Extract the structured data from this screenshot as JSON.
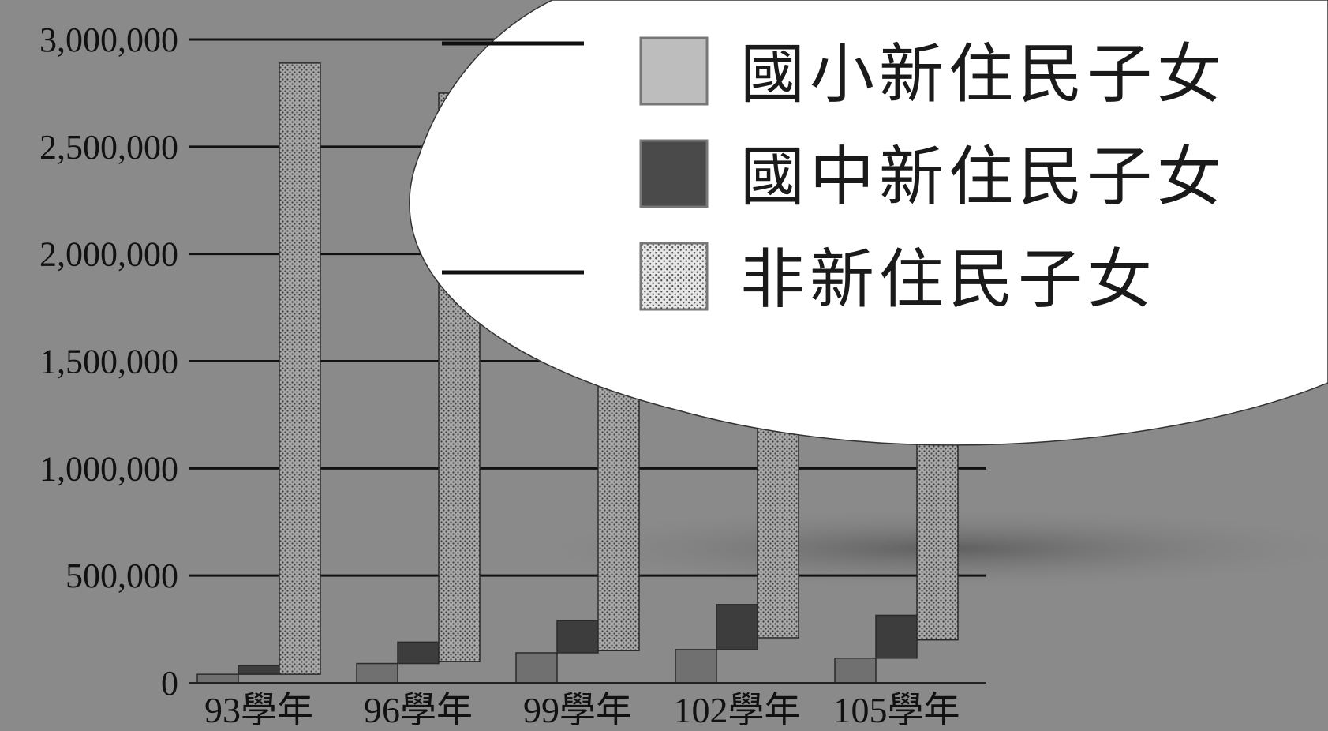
{
  "chart_data": {
    "type": "bar",
    "title": "",
    "xlabel": "",
    "ylabel": "",
    "categories": [
      "93學年",
      "96學年",
      "99學年",
      "102學年",
      "105學年"
    ],
    "series": [
      {
        "name": "國小新住民子女",
        "color": "#6e6e6e",
        "pattern": "solid",
        "values": [
          40000,
          90000,
          140000,
          155000,
          115000
        ]
      },
      {
        "name": "國中新住民子女",
        "color": "#3a3a3a",
        "pattern": "solid",
        "values": [
          40000,
          100000,
          150000,
          210000,
          200000
        ]
      },
      {
        "name": "非新住民子女",
        "color": "#9a9a9a",
        "pattern": "dots",
        "values": [
          2850000,
          2650000,
          2600000,
          2400000,
          2250000
        ]
      }
    ],
    "stack": [
      {
        "series": 1,
        "on": 0
      },
      {
        "series": 2,
        "on": 1
      }
    ],
    "ylim": [
      0,
      3000000
    ],
    "yticks": [
      "0",
      "500,000",
      "1,000,000",
      "1,500,000",
      "2,000,000",
      "2,500,000",
      "3,000,000"
    ],
    "ytick_values": [
      0,
      500000,
      1000000,
      1500000,
      2000000,
      2500000,
      3000000
    ],
    "grid": true,
    "legend": {
      "placement": "top-right"
    }
  }
}
